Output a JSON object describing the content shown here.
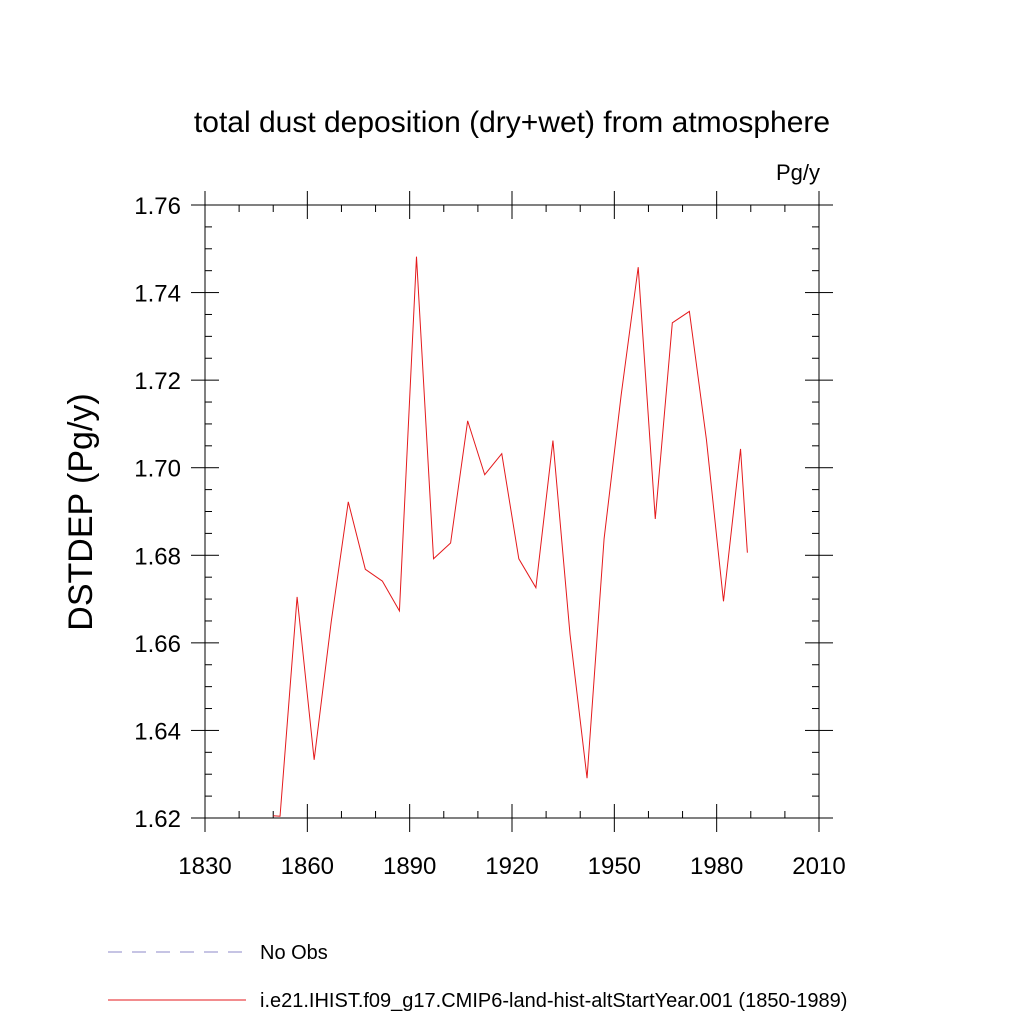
{
  "chart_data": {
    "type": "line",
    "title": "total dust deposition (dry+wet) from atmosphere",
    "units": "Pg/y",
    "ylabel": "DSTDEP  (Pg/y)",
    "xlabel": "",
    "xlim": [
      1830,
      2010
    ],
    "ylim": [
      1.62,
      1.76
    ],
    "x_ticks": [
      "1830",
      "1860",
      "1890",
      "1920",
      "1950",
      "1980",
      "2010"
    ],
    "y_ticks": [
      "1.62",
      "1.64",
      "1.66",
      "1.68",
      "1.70",
      "1.72",
      "1.74",
      "1.76"
    ],
    "grid": false,
    "legend_position": "bottom",
    "series": [
      {
        "name": "No Obs",
        "color": "#8e88c9",
        "style": "dashed",
        "x": [],
        "y": []
      },
      {
        "name": "i.e21.IHIST.f09_g17.CMIP6-land-hist-altStartYear.001 (1850-1989)",
        "color": "#e41a1c",
        "style": "solid",
        "x": [
          1850,
          1852,
          1857,
          1862,
          1867,
          1872,
          1877,
          1882,
          1887,
          1892,
          1897,
          1902,
          1907,
          1912,
          1917,
          1922,
          1927,
          1932,
          1937,
          1942,
          1947,
          1952,
          1957,
          1962,
          1967,
          1972,
          1977,
          1982,
          1987,
          1989
        ],
        "y": [
          1.6205,
          1.6204,
          1.6705,
          1.6333,
          1.6648,
          1.6922,
          1.6768,
          1.6741,
          1.6673,
          1.7482,
          1.6792,
          1.6828,
          1.7107,
          1.6984,
          1.7032,
          1.6792,
          1.6726,
          1.7062,
          1.662,
          1.6291,
          1.6838,
          1.7166,
          1.7458,
          1.6883,
          1.7331,
          1.7357,
          1.7064,
          1.6695,
          1.7043,
          1.6806
        ]
      }
    ]
  }
}
